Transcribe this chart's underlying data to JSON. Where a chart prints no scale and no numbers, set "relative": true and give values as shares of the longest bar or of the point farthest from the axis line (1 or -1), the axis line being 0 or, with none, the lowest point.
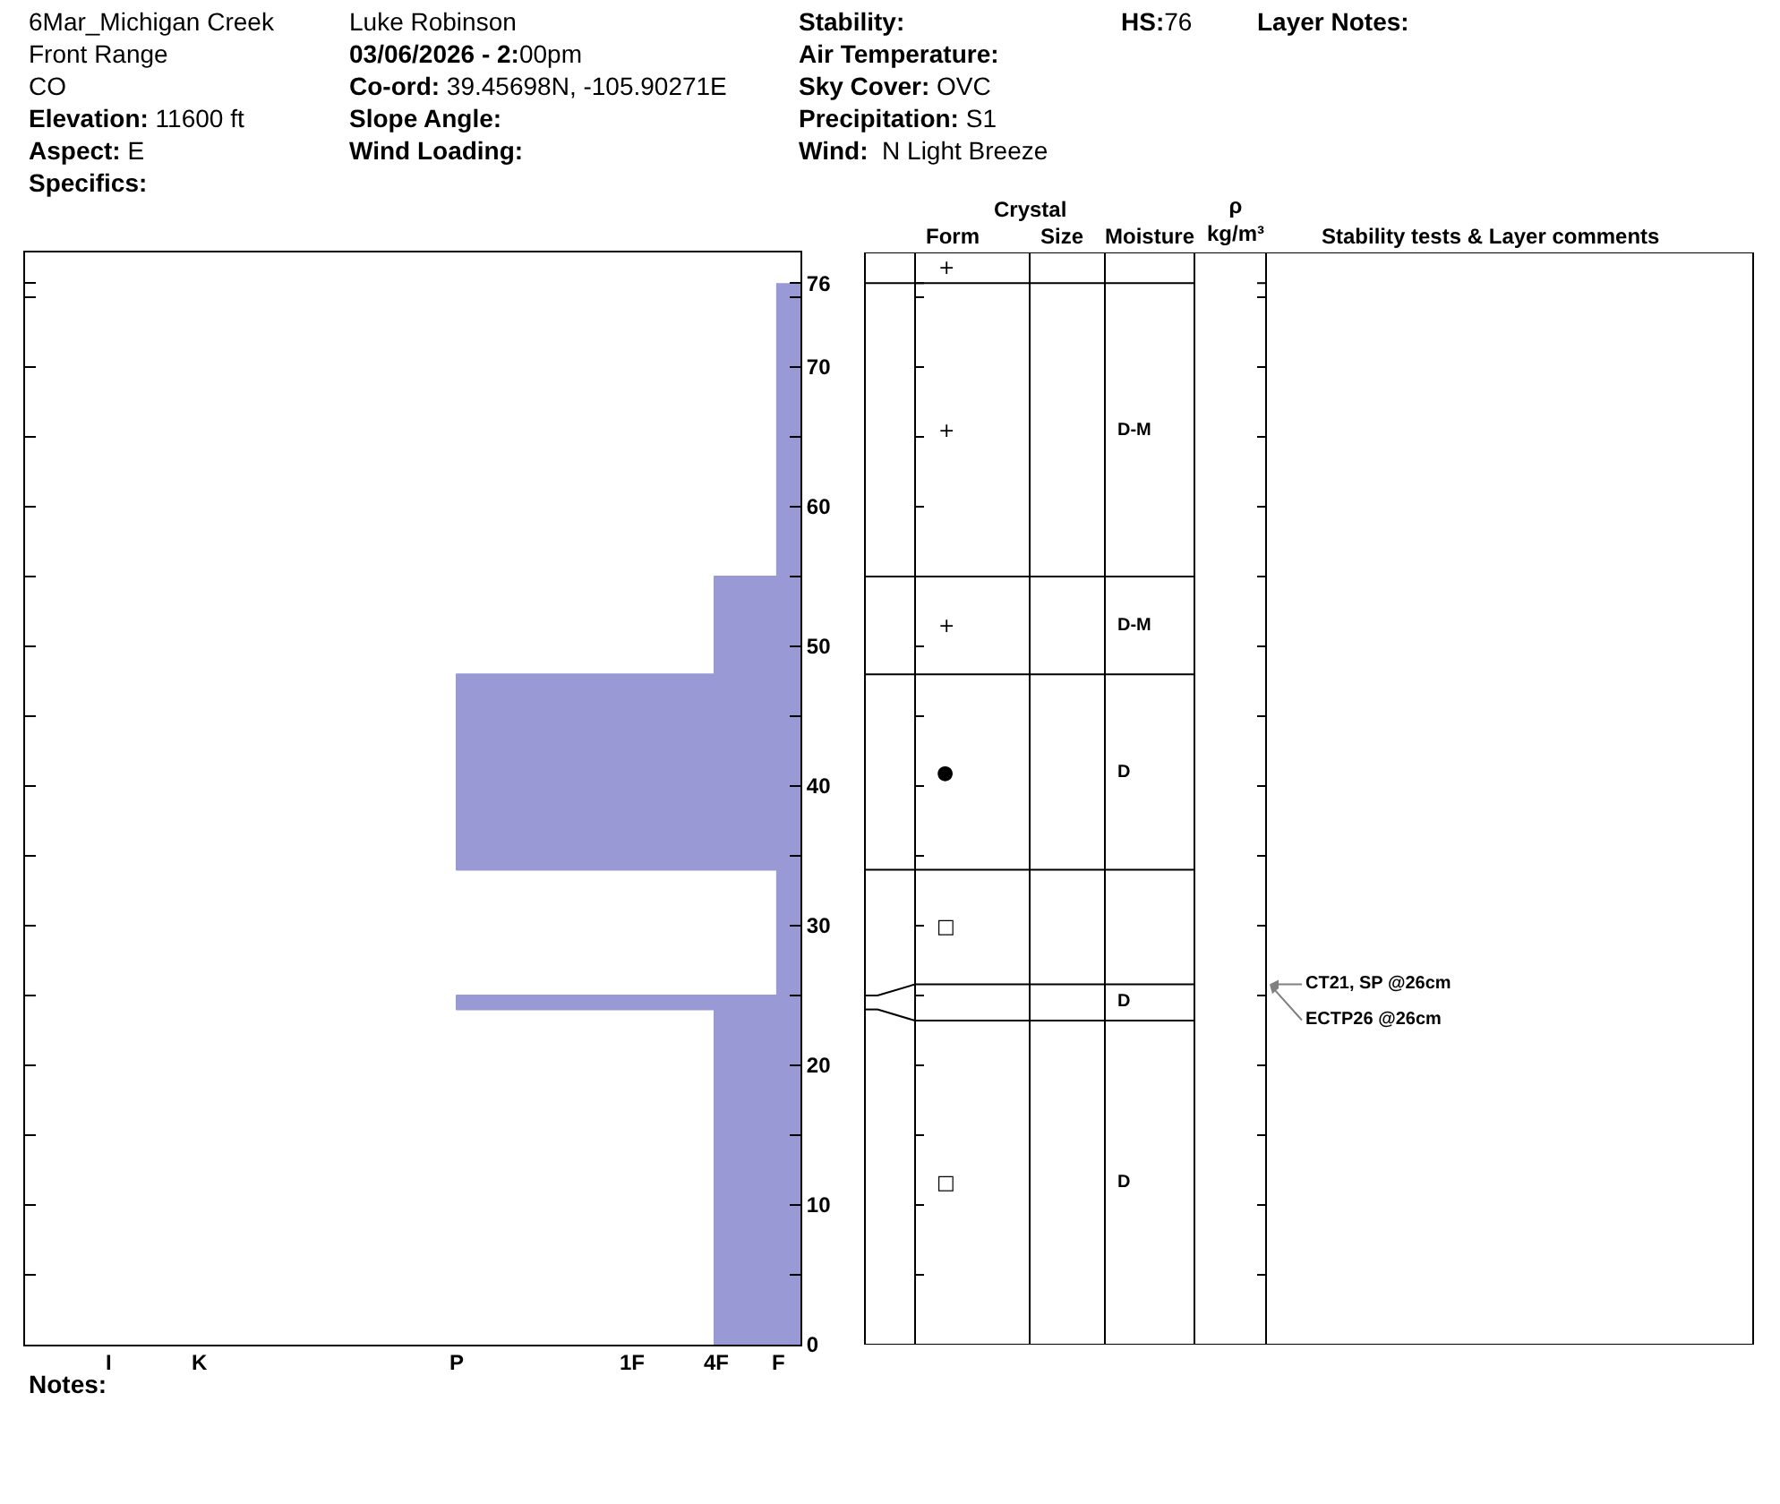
{
  "chart_data": {
    "type": "area",
    "orientation": "horizontal",
    "relative": true,
    "color": "#9999d6",
    "x": [
      0,
      24,
      24,
      25,
      25,
      34,
      34,
      48,
      48,
      55,
      55,
      76
    ],
    "values": [
      -0.25,
      -0.25,
      -1,
      -1,
      -0.068,
      -0.068,
      -1,
      -1,
      -0.25,
      -0.25,
      -0.068,
      -0.068
    ],
    "ylim": [
      0,
      78.2
    ],
    "yticks": [
      0,
      {
        "value": 5,
        "label": null
      },
      10,
      {
        "value": 15,
        "label": null
      },
      20,
      {
        "value": 25,
        "label": null
      },
      30,
      {
        "value": 35,
        "label": null
      },
      40,
      {
        "value": 45,
        "label": null
      },
      50,
      {
        "value": 55,
        "label": null
      },
      60,
      {
        "value": 65,
        "label": null
      },
      70,
      {
        "value": 75,
        "label": null
      },
      76
    ],
    "annotations": [
      "6Mar_Michigan Creek",
      "Front Range",
      "CO",
      "Elevation: 11600 ft",
      "Aspect: E",
      "Specifics:",
      "Luke Robinson",
      "03/06/2026 - 2:00pm",
      "Co-ord: 39.45698N, -105.90271E",
      "Slope Angle:",
      "Wind Loading:",
      "Stability:",
      "Air Temperature:",
      "Sky Cover: OVC",
      "Precipitation: S1",
      "Wind:  N Light Breeze",
      "HS:76",
      "Layer Notes:",
      "Notes:",
      "I",
      "K",
      "P",
      "1F",
      "4F",
      "F",
      "Crystal",
      "Form",
      "Size",
      "Moisture",
      "ρ kg/m³",
      "Stability tests & Layer comments",
      "+",
      "+",
      "D-M",
      "+",
      "D-M",
      "●",
      "D",
      "□",
      "D",
      "□",
      "D",
      "CT21, SP @26cm",
      "ECTP26 @26cm"
    ]
  }
}
